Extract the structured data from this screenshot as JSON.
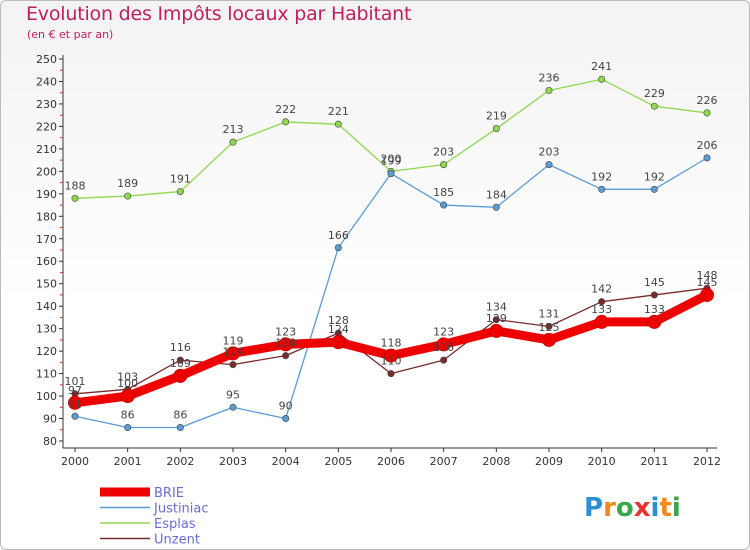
{
  "title": "Evolution des Impôts locaux par Habitant",
  "subtitle": "(en € et par an)",
  "logo": {
    "text": "Proxiti",
    "colors": [
      "#2b8fd6",
      "#f08a1c",
      "#3aa84a",
      "#e8342f",
      "#2b8fd6",
      "#f08a1c",
      "#3aa84a"
    ]
  },
  "chart_data": {
    "type": "line",
    "title": "Evolution des Impôts locaux par Habitant",
    "subtitle": "(en € et par an)",
    "x": [
      "2000",
      "2001",
      "2002",
      "2003",
      "2004",
      "2005",
      "2006",
      "2007",
      "2008",
      "2009",
      "2010",
      "2011",
      "2012"
    ],
    "ylim": [
      80,
      250
    ],
    "yticks": [
      80,
      90,
      100,
      110,
      120,
      130,
      140,
      150,
      160,
      170,
      180,
      190,
      200,
      210,
      220,
      230,
      240,
      250
    ],
    "grid": false,
    "legend_position": "bottom-left",
    "series": [
      {
        "name": "BRIE",
        "color": "#ee0000",
        "values": [
          97,
          100,
          109,
          119,
          123,
          124,
          118,
          123,
          129,
          125,
          133,
          133,
          145
        ]
      },
      {
        "name": "Justiniac",
        "color": "#5b9bd5",
        "values": [
          91,
          86,
          86,
          95,
          90,
          166,
          199,
          185,
          184,
          203,
          192,
          192,
          206
        ]
      },
      {
        "name": "Esplas",
        "color": "#8fd84f",
        "values": [
          188,
          189,
          191,
          213,
          222,
          221,
          200,
          203,
          219,
          236,
          241,
          229,
          226
        ]
      },
      {
        "name": "Unzent",
        "color": "#7a2a2a",
        "values": [
          101,
          103,
          116,
          114,
          118,
          128,
          110,
          116,
          134,
          131,
          142,
          145,
          148
        ]
      }
    ]
  }
}
